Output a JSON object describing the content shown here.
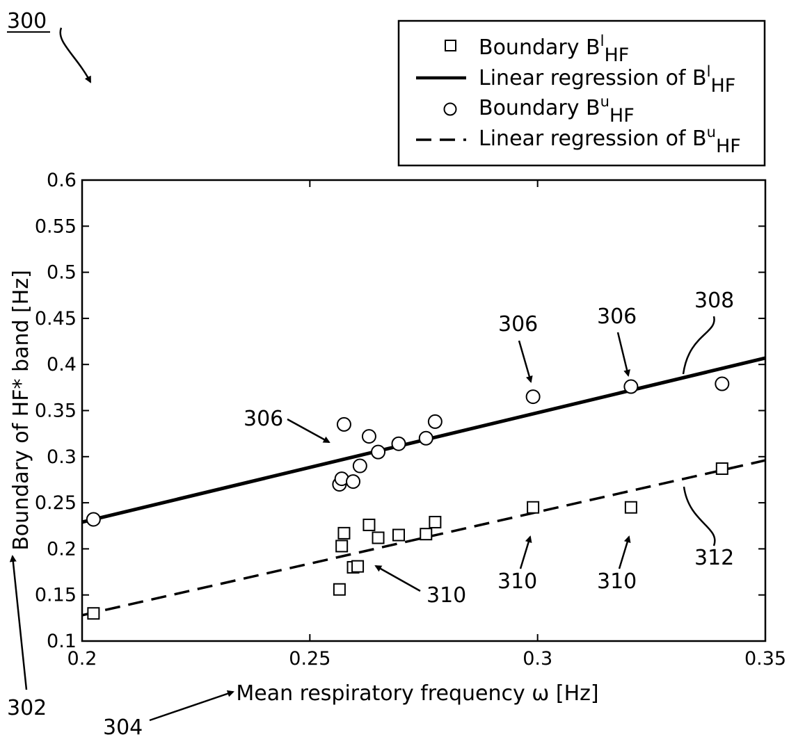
{
  "figure": {
    "number": "300",
    "refs": {
      "y_axis": "302",
      "x_axis": "304",
      "upper_points": "306",
      "upper_line": "308",
      "lower_points": "310",
      "lower_line": "312"
    }
  },
  "chart_data": {
    "type": "scatter",
    "xlabel": "Mean respiratory frequency ω [Hz]",
    "ylabel": "Boundary of HF* band [Hz]",
    "xlim": [
      0.2,
      0.35
    ],
    "ylim": [
      0.1,
      0.6
    ],
    "x_ticks": [
      "0.2",
      "0.25",
      "0.3",
      "0.35"
    ],
    "y_ticks": [
      "0.1",
      "0.15",
      "0.2",
      "0.25",
      "0.3",
      "0.35",
      "0.4",
      "0.45",
      "0.5",
      "0.55",
      "0.6"
    ],
    "legend": {
      "placement": "above plot, top-right",
      "entries": [
        {
          "base": "Boundary B",
          "sup": "l",
          "sub": "HF",
          "marker": "square"
        },
        {
          "base": "Linear regression of B",
          "sup": "l",
          "sub": "HF",
          "marker": "solid-line"
        },
        {
          "base": "Boundary B",
          "sup": "u",
          "sub": "HF",
          "marker": "circle"
        },
        {
          "base": "Linear regression of B",
          "sup": "u",
          "sub": "HF",
          "marker": "dashed-line"
        }
      ]
    },
    "series": [
      {
        "marker": "square",
        "points": [
          [
            0.2025,
            0.13
          ],
          [
            0.2565,
            0.156
          ],
          [
            0.257,
            0.203
          ],
          [
            0.2575,
            0.217
          ],
          [
            0.2595,
            0.18
          ],
          [
            0.2605,
            0.181
          ],
          [
            0.263,
            0.226
          ],
          [
            0.265,
            0.212
          ],
          [
            0.2695,
            0.215
          ],
          [
            0.2755,
            0.216
          ],
          [
            0.2775,
            0.229
          ],
          [
            0.299,
            0.245
          ],
          [
            0.3205,
            0.245
          ],
          [
            0.3405,
            0.287
          ]
        ]
      },
      {
        "marker": "solid-line",
        "line": [
          [
            0.2,
            0.229
          ],
          [
            0.35,
            0.407
          ]
        ]
      },
      {
        "marker": "circle",
        "points": [
          [
            0.2025,
            0.232
          ],
          [
            0.2565,
            0.27
          ],
          [
            0.257,
            0.276
          ],
          [
            0.2575,
            0.335
          ],
          [
            0.2595,
            0.273
          ],
          [
            0.261,
            0.29
          ],
          [
            0.263,
            0.322
          ],
          [
            0.265,
            0.305
          ],
          [
            0.2695,
            0.314
          ],
          [
            0.2755,
            0.32
          ],
          [
            0.2775,
            0.338
          ],
          [
            0.299,
            0.365
          ],
          [
            0.3205,
            0.376
          ],
          [
            0.3405,
            0.379
          ]
        ]
      },
      {
        "marker": "dashed-line",
        "line": [
          [
            0.2,
            0.128
          ],
          [
            0.35,
            0.296
          ]
        ]
      }
    ]
  }
}
